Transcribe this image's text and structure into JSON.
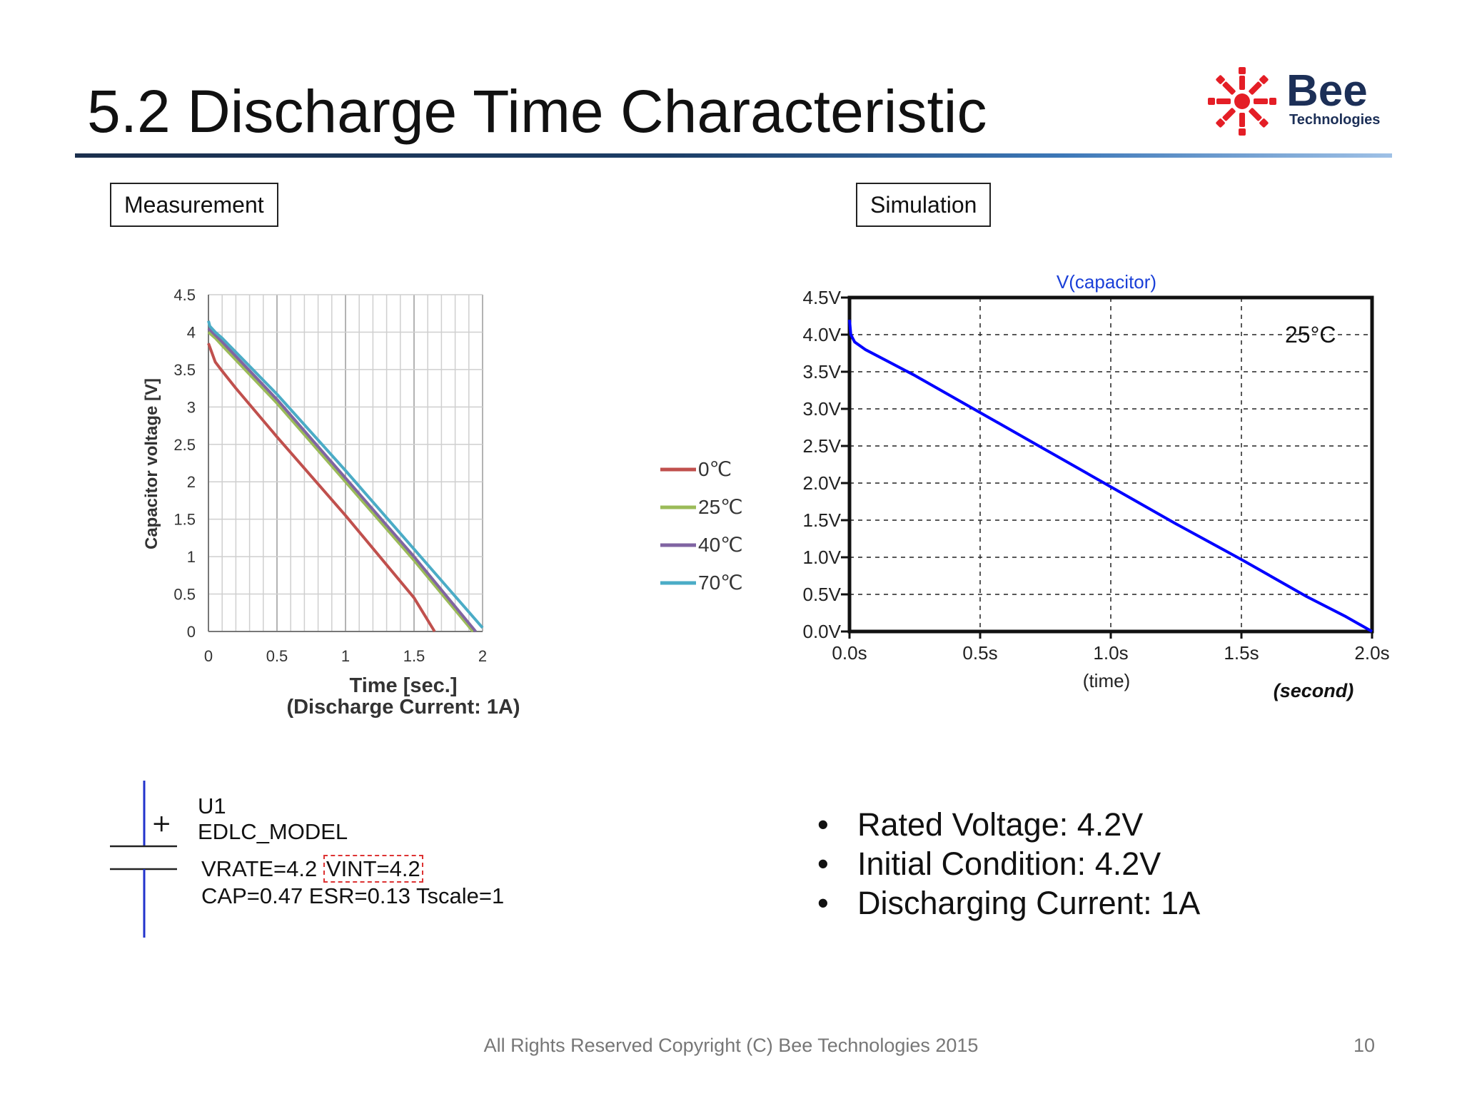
{
  "slide": {
    "title": "5.2 Discharge Time Characteristic",
    "logo": {
      "wordmark": "Bee",
      "subtitle": "Technologies",
      "color": "#e41e26"
    },
    "measurement_label": "Measurement",
    "simulation_label": "Simulation",
    "bullets": [
      "Rated Voltage: 4.2V",
      "Initial Condition: 4.2V",
      "Discharging Current: 1A"
    ],
    "footer": "All Rights Reserved Copyright (C) Bee Technologies 2015",
    "page": "10"
  },
  "schematic": {
    "ref": "U1",
    "model": "EDLC_MODEL",
    "line1_a": "VRATE=4.2",
    "line1_b": "VINT=4.2",
    "line2": "CAP=0.47 ESR=0.13 Tscale=1",
    "plus_sign": "+"
  },
  "chart_data": [
    {
      "type": "line",
      "title": "",
      "xlabel": "Time [sec.]",
      "xlabel2": "(Discharge Current: 1A)",
      "ylabel": "Capacitor voltage [V]",
      "xlim": [
        0,
        2
      ],
      "ylim": [
        0,
        4.5
      ],
      "x_ticks": [
        "0",
        "0.5",
        "1",
        "1.5",
        "2"
      ],
      "y_ticks": [
        "0",
        "0.5",
        "1",
        "1.5",
        "2",
        "2.5",
        "3",
        "3.5",
        "4",
        "4.5"
      ],
      "grid": true,
      "legend_position": "right",
      "series": [
        {
          "name": "0℃",
          "color": "#c0504d",
          "x": [
            0,
            0.05,
            0.1,
            0.2,
            0.5,
            1.0,
            1.5,
            1.65
          ],
          "y": [
            3.85,
            3.6,
            3.48,
            3.25,
            2.6,
            1.55,
            0.45,
            0.0
          ]
        },
        {
          "name": "25℃",
          "color": "#9bbb59",
          "x": [
            0,
            0.05,
            0.1,
            0.5,
            1.0,
            1.5,
            1.93
          ],
          "y": [
            4.0,
            3.92,
            3.82,
            3.05,
            2.0,
            0.95,
            0.0
          ]
        },
        {
          "name": "40℃",
          "color": "#8064a2",
          "x": [
            0,
            0.05,
            0.1,
            0.5,
            1.0,
            1.5,
            1.95
          ],
          "y": [
            4.05,
            3.96,
            3.87,
            3.1,
            2.05,
            1.0,
            0.0
          ]
        },
        {
          "name": "70℃",
          "color": "#4bacc6",
          "x": [
            0,
            0.01,
            0.05,
            0.1,
            0.5,
            1.0,
            1.5,
            2.0
          ],
          "y": [
            4.15,
            4.08,
            4.0,
            3.92,
            3.17,
            2.15,
            1.1,
            0.05
          ]
        }
      ]
    },
    {
      "type": "line",
      "title": "V(capacitor)",
      "xlabel": "(time)",
      "x_unit_note": "(second)",
      "annotation": "25°C",
      "xlim": [
        0,
        2
      ],
      "ylim": [
        0,
        4.5
      ],
      "x_ticks": [
        "0.0s",
        "0.5s",
        "1.0s",
        "1.5s",
        "2.0s"
      ],
      "y_ticks": [
        "0.0V",
        "0.5V",
        "1.0V",
        "1.5V",
        "2.0V",
        "2.5V",
        "3.0V",
        "3.5V",
        "4.0V",
        "4.5V"
      ],
      "grid": true,
      "series": [
        {
          "name": "V(capacitor)",
          "color": "#0000ff",
          "x": [
            0,
            0.005,
            0.02,
            0.06,
            0.25,
            0.5,
            0.75,
            1.0,
            1.25,
            1.5,
            1.75,
            1.9,
            2.0
          ],
          "y": [
            4.2,
            4.0,
            3.9,
            3.8,
            3.45,
            2.95,
            2.45,
            1.95,
            1.45,
            0.97,
            0.47,
            0.2,
            0.0
          ]
        }
      ]
    }
  ]
}
